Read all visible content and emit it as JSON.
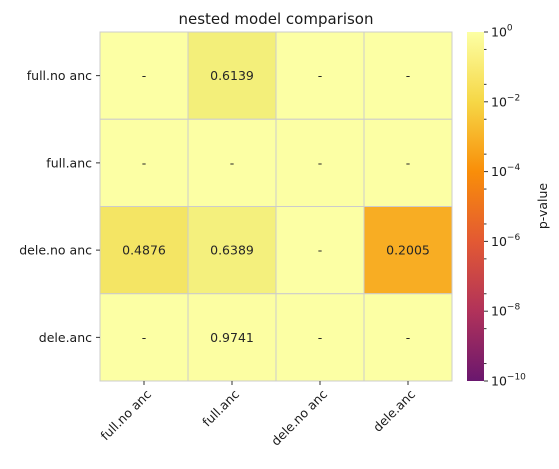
{
  "chart_data": {
    "type": "heatmap",
    "title": "nested model comparison",
    "rows": [
      "full.no anc",
      "full.anc",
      "dele.no anc",
      "dele.anc"
    ],
    "columns": [
      "full.no anc",
      "full.anc",
      "dele.no anc",
      "dele.anc"
    ],
    "values": [
      [
        null,
        0.6139,
        null,
        null
      ],
      [
        null,
        null,
        null,
        null
      ],
      [
        0.4876,
        0.6389,
        null,
        0.2005
      ],
      [
        null,
        0.9741,
        null,
        null
      ]
    ],
    "labels": [
      [
        "-",
        "0.6139",
        "-",
        "-"
      ],
      [
        "-",
        "-",
        "-",
        "-"
      ],
      [
        "0.4876",
        "0.6389",
        "-",
        "0.2005"
      ],
      [
        "-",
        "0.9741",
        "-",
        "-"
      ]
    ],
    "colorbar": {
      "label": "p-value",
      "scale": "log",
      "range": [
        1e-10,
        1
      ],
      "ticks": [
        {
          "value": 1,
          "base": "10",
          "exp": "0"
        },
        {
          "value": 0.01,
          "base": "10",
          "exp": "−2"
        },
        {
          "value": 0.0001,
          "base": "10",
          "exp": "−4"
        },
        {
          "value": 1e-06,
          "base": "10",
          "exp": "−6"
        },
        {
          "value": 1e-08,
          "base": "10",
          "exp": "−8"
        },
        {
          "value": 1e-10,
          "base": "10",
          "exp": "−10"
        }
      ],
      "colormap": "inferno",
      "null_color": "#fcffa4"
    },
    "grid": true
  }
}
